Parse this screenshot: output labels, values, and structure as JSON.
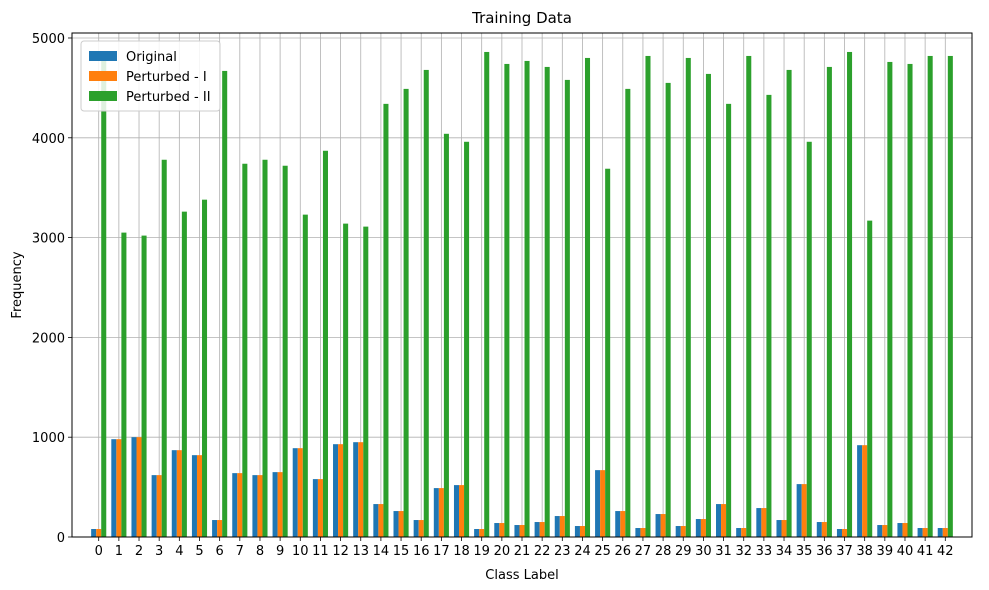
{
  "chart_data": {
    "type": "bar",
    "title": "Training Data",
    "xlabel": "Class Label",
    "ylabel": "Frequency",
    "ylim": [
      0,
      5050
    ],
    "yticks": [
      0,
      1000,
      2000,
      3000,
      4000,
      5000
    ],
    "grid": true,
    "legend_position": "upper-left",
    "categories": [
      "0",
      "1",
      "2",
      "3",
      "4",
      "5",
      "6",
      "7",
      "8",
      "9",
      "10",
      "11",
      "12",
      "13",
      "14",
      "15",
      "16",
      "17",
      "18",
      "19",
      "20",
      "21",
      "22",
      "23",
      "24",
      "25",
      "26",
      "27",
      "28",
      "29",
      "30",
      "31",
      "32",
      "33",
      "34",
      "35",
      "36",
      "37",
      "38",
      "39",
      "40",
      "41",
      "42"
    ],
    "series": [
      {
        "name": "Original",
        "color": "#1f77b4",
        "values": [
          80,
          980,
          1000,
          620,
          870,
          820,
          170,
          640,
          620,
          650,
          890,
          580,
          930,
          950,
          330,
          260,
          170,
          490,
          520,
          80,
          140,
          120,
          150,
          210,
          110,
          670,
          260,
          90,
          230,
          110,
          180,
          330,
          90,
          290,
          170,
          530,
          150,
          80,
          920,
          120,
          140,
          90,
          90
        ]
      },
      {
        "name": "Perturbed - I",
        "color": "#ff7f0e",
        "values": [
          80,
          980,
          1000,
          620,
          870,
          820,
          170,
          640,
          620,
          650,
          890,
          580,
          930,
          950,
          330,
          260,
          170,
          490,
          520,
          80,
          140,
          120,
          150,
          210,
          110,
          670,
          260,
          90,
          230,
          110,
          180,
          330,
          90,
          290,
          170,
          530,
          150,
          80,
          920,
          120,
          140,
          90,
          90
        ]
      },
      {
        "name": "Perturbed - II",
        "color": "#2ca02c",
        "values": [
          4860,
          3050,
          3020,
          3780,
          3260,
          3380,
          4670,
          3740,
          3780,
          3720,
          3230,
          3870,
          3140,
          3110,
          4340,
          4490,
          4680,
          4040,
          3960,
          4860,
          4740,
          4770,
          4710,
          4580,
          4800,
          3690,
          4490,
          4820,
          4550,
          4800,
          4640,
          4340,
          4820,
          4430,
          4680,
          3960,
          4710,
          4860,
          3170,
          4760,
          4740,
          4820,
          4820
        ]
      }
    ]
  }
}
